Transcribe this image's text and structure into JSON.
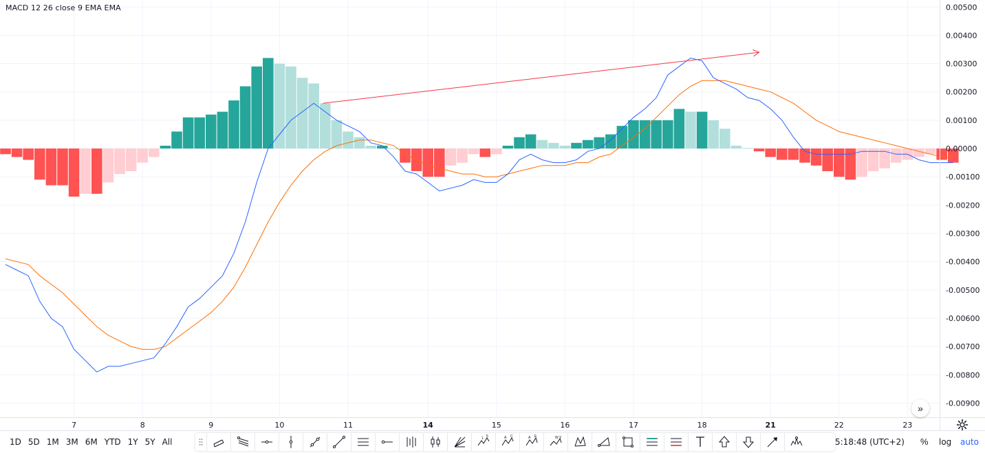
{
  "legend": {
    "title": "MACD 12 26 close 9 EMA EMA"
  },
  "colors": {
    "hist_up_strong": "#26a69a",
    "hist_up_weak": "#b2dfdb",
    "hist_down_strong": "#ff5252",
    "hist_down_weak": "#ffcdd2",
    "macd_line": "#2962ff",
    "signal_line": "#ff6d00",
    "trend_line": "#f23645",
    "grid": "#f0f3fa",
    "axis_text": "#131722"
  },
  "chart_data": {
    "type": "bar",
    "title": "",
    "ylim": [
      -0.0095,
      0.005
    ],
    "y_ticks": [
      "0.00500",
      "0.00400",
      "0.00300",
      "0.00200",
      "0.00100",
      "0.00000",
      "-0.00100",
      "-0.00200",
      "-0.00300",
      "-0.00400",
      "-0.00500",
      "-0.00600",
      "-0.00700",
      "-0.00800",
      "-0.00900"
    ],
    "x_ticks": [
      {
        "label": "",
        "i": 0.0
      },
      {
        "label": "7",
        "i": 6
      },
      {
        "label": "8",
        "i": 12
      },
      {
        "label": "9",
        "i": 18
      },
      {
        "label": "10",
        "i": 24
      },
      {
        "label": "11",
        "i": 30
      },
      {
        "label": "14",
        "i": 37
      },
      {
        "label": "15",
        "i": 43
      },
      {
        "label": "16",
        "i": 49
      },
      {
        "label": "17",
        "i": 55
      },
      {
        "label": "18",
        "i": 61
      },
      {
        "label": "21",
        "i": 67
      },
      {
        "label": "22",
        "i": 73
      },
      {
        "label": "23",
        "i": 79
      }
    ],
    "grid": true,
    "series": [
      {
        "name": "Histogram",
        "values": [
          -0.0002,
          -0.0003,
          -0.0004,
          -0.0011,
          -0.0013,
          -0.0013,
          -0.0017,
          -0.0016,
          -0.0016,
          -0.0012,
          -0.0009,
          -0.0008,
          -0.0005,
          -0.0003,
          0.0001,
          0.0006,
          0.0011,
          0.0011,
          0.0012,
          0.0013,
          0.0017,
          0.0022,
          0.0029,
          0.0032,
          0.003,
          0.0029,
          0.0025,
          0.0023,
          0.0016,
          0.001,
          0.0006,
          0.0004,
          0.0001,
          0.0001,
          0.0,
          -0.0005,
          -0.0008,
          -0.001,
          -0.001,
          -0.0006,
          -0.0005,
          -0.0002,
          -0.0003,
          -0.0002,
          0.0001,
          0.0004,
          0.0005,
          0.0003,
          0.0002,
          0.0001,
          0.0002,
          0.0003,
          0.0004,
          0.0005,
          0.0008,
          0.001,
          0.001,
          0.001,
          0.001,
          0.0014,
          0.0013,
          0.0013,
          0.001,
          0.0007,
          0.0001,
          2e-05,
          -0.0001,
          -0.0003,
          -0.0004,
          -0.0004,
          -0.0005,
          -0.0006,
          -0.0008,
          -0.001,
          -0.0011,
          -0.001,
          -0.0008,
          -0.0007,
          -0.0005,
          -0.0004,
          -0.0003,
          -0.0002,
          -0.0004,
          -0.0005
        ]
      },
      {
        "name": "MACD",
        "values": [
          -0.0041,
          -0.0043,
          -0.0045,
          -0.0054,
          -0.006,
          -0.0063,
          -0.0071,
          -0.0075,
          -0.0079,
          -0.0077,
          -0.0077,
          -0.0076,
          -0.0075,
          -0.0074,
          -0.0069,
          -0.0063,
          -0.0056,
          -0.0053,
          -0.0049,
          -0.0045,
          -0.0037,
          -0.0026,
          -0.0012,
          0.0,
          0.0005,
          0.001,
          0.0013,
          0.0016,
          0.0013,
          0.001,
          0.0008,
          0.0006,
          0.0002,
          0.0001,
          -0.0003,
          -0.0008,
          -0.0009,
          -0.0012,
          -0.0015,
          -0.0014,
          -0.0013,
          -0.0011,
          -0.0012,
          -0.0012,
          -0.0009,
          -0.0004,
          -0.0002,
          -0.0004,
          -0.0005,
          -0.0005,
          -0.0004,
          -0.0001,
          0.0,
          0.0003,
          0.0007,
          0.0011,
          0.0014,
          0.0018,
          0.0026,
          0.0029,
          0.0032,
          0.0031,
          0.0025,
          0.0023,
          0.0021,
          0.0018,
          0.0017,
          0.0014,
          0.001,
          0.0004,
          -0.0001,
          -0.0002,
          -0.0002,
          -0.0002,
          -0.0002,
          -0.0001,
          -0.0001,
          -0.0001,
          -0.0002,
          -0.0002,
          -0.0004,
          -0.0005,
          -0.0005,
          -0.0005
        ]
      },
      {
        "name": "Signal",
        "values": [
          -0.0039,
          -0.004,
          -0.0041,
          -0.0045,
          -0.0048,
          -0.0051,
          -0.0055,
          -0.0059,
          -0.0063,
          -0.0066,
          -0.0068,
          -0.007,
          -0.0071,
          -0.0071,
          -0.007,
          -0.0067,
          -0.0064,
          -0.0061,
          -0.0058,
          -0.0054,
          -0.0049,
          -0.0042,
          -0.0034,
          -0.0026,
          -0.0019,
          -0.0013,
          -0.0008,
          -0.0004,
          -0.0001,
          0.0001,
          0.0002,
          0.0003,
          0.0003,
          0.0002,
          0.0001,
          -0.0002,
          -0.0004,
          -0.0006,
          -0.0007,
          -0.0008,
          -0.0009,
          -0.0009,
          -0.001,
          -0.001,
          -0.0009,
          -0.0008,
          -0.0007,
          -0.0006,
          -0.0006,
          -0.0006,
          -0.0005,
          -0.0005,
          -0.0003,
          -0.0002,
          0.0001,
          0.0004,
          0.0007,
          0.0011,
          0.0015,
          0.0019,
          0.0022,
          0.0024,
          0.0024,
          0.0024,
          0.0023,
          0.0022,
          0.0021,
          0.002,
          0.0018,
          0.0016,
          0.0013,
          0.001,
          0.0008,
          0.0006,
          0.0005,
          0.0004,
          0.0003,
          0.0002,
          0.0001,
          0.0,
          -0.0001,
          -0.0002,
          -0.0003,
          -0.0003
        ]
      }
    ],
    "trend_line": {
      "from": {
        "i": 27.8,
        "y": 0.0016
      },
      "to": {
        "i": 66,
        "y": 0.0034
      }
    }
  },
  "bottom_bar": {
    "ranges": [
      "1D",
      "5D",
      "1M",
      "3M",
      "6M",
      "YTD",
      "1Y",
      "5Y",
      "All"
    ],
    "time": "5:18:48 (UTC+2)",
    "percent": "%",
    "log": "log",
    "auto": "auto"
  },
  "toolbar": {
    "tools": [
      "parallel-channel-icon",
      "pitchfork-icon",
      "horizontal-ray-icon",
      "vertical-line-icon",
      "trend-angle-icon",
      "trend-line-icon",
      "horizontal-lines-icon",
      "horizontal-ray-dot-icon",
      "bars-pattern-icon",
      "candles-icon",
      "gann-fan-icon",
      "elliott-1-5-icon",
      "abcd-icon",
      "abe-icon",
      "wxy-icon",
      "xabcd-icon",
      "triangle-pattern-icon",
      "rectangle-icon",
      "long-position-icon",
      "short-position-icon",
      "text-icon",
      "arrow-up-icon",
      "arrow-down-icon",
      "arrow-marker-icon",
      "head-shoulders-icon"
    ]
  }
}
